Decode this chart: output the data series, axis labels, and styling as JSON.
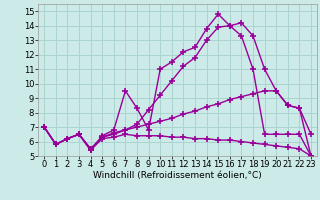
{
  "background_color": "#cceae7",
  "grid_color": "#aad4d0",
  "line_color": "#990099",
  "marker": "+",
  "markersize": 4,
  "linewidth": 1.0,
  "markeredgewidth": 1.2,
  "xlabel": "Windchill (Refroidissement éolien,°C)",
  "xlabel_fontsize": 6.5,
  "tick_fontsize": 6,
  "ylim": [
    5,
    15.5
  ],
  "xlim": [
    -0.5,
    23.5
  ],
  "yticks": [
    5,
    6,
    7,
    8,
    9,
    10,
    11,
    12,
    13,
    14,
    15
  ],
  "xticks": [
    0,
    1,
    2,
    3,
    4,
    5,
    6,
    7,
    8,
    9,
    10,
    11,
    12,
    13,
    14,
    15,
    16,
    17,
    18,
    19,
    20,
    21,
    22,
    23
  ],
  "s1_x": [
    0,
    1,
    2,
    3,
    4,
    5,
    6,
    7,
    8,
    9,
    10,
    11,
    12,
    13,
    14,
    15,
    16,
    17,
    18,
    19,
    20,
    21,
    22,
    23
  ],
  "s1_y": [
    7.0,
    5.8,
    6.2,
    6.5,
    5.4,
    6.2,
    6.3,
    6.5,
    6.4,
    6.4,
    6.4,
    6.3,
    6.3,
    6.2,
    6.2,
    6.1,
    6.1,
    6.0,
    5.9,
    5.8,
    5.7,
    5.6,
    5.5,
    5.0
  ],
  "s2_x": [
    0,
    1,
    2,
    3,
    4,
    5,
    6,
    7,
    8,
    9,
    10,
    11,
    12,
    13,
    14,
    15,
    16,
    17,
    18,
    19,
    20,
    21,
    22,
    23
  ],
  "s2_y": [
    7.0,
    5.8,
    6.2,
    6.5,
    5.5,
    6.3,
    6.5,
    6.8,
    7.0,
    7.2,
    7.4,
    7.6,
    7.9,
    8.1,
    8.4,
    8.6,
    8.9,
    9.1,
    9.3,
    9.5,
    9.5,
    8.5,
    8.3,
    5.0
  ],
  "s3_x": [
    0,
    1,
    2,
    3,
    4,
    5,
    6,
    7,
    8,
    9,
    10,
    11,
    12,
    13,
    14,
    15,
    16,
    17,
    18,
    19,
    20,
    21,
    22,
    23
  ],
  "s3_y": [
    7.0,
    5.8,
    6.2,
    6.5,
    5.5,
    6.3,
    6.6,
    6.8,
    7.2,
    8.2,
    9.2,
    10.2,
    11.2,
    11.8,
    13.0,
    13.9,
    14.0,
    14.2,
    13.3,
    11.0,
    9.5,
    8.5,
    8.3,
    6.5
  ],
  "s4_x": [
    0,
    1,
    2,
    3,
    4,
    5,
    6,
    7,
    8,
    9,
    10,
    11,
    12,
    13,
    14,
    15,
    16,
    17,
    18,
    19,
    20,
    21,
    22,
    23
  ],
  "s4_y": [
    7.0,
    5.8,
    6.2,
    6.5,
    5.4,
    6.4,
    6.8,
    9.5,
    8.3,
    6.8,
    11.0,
    11.5,
    12.2,
    12.5,
    13.8,
    14.8,
    14.0,
    13.3,
    11.0,
    6.5,
    6.5,
    6.5,
    6.5,
    5.0
  ]
}
